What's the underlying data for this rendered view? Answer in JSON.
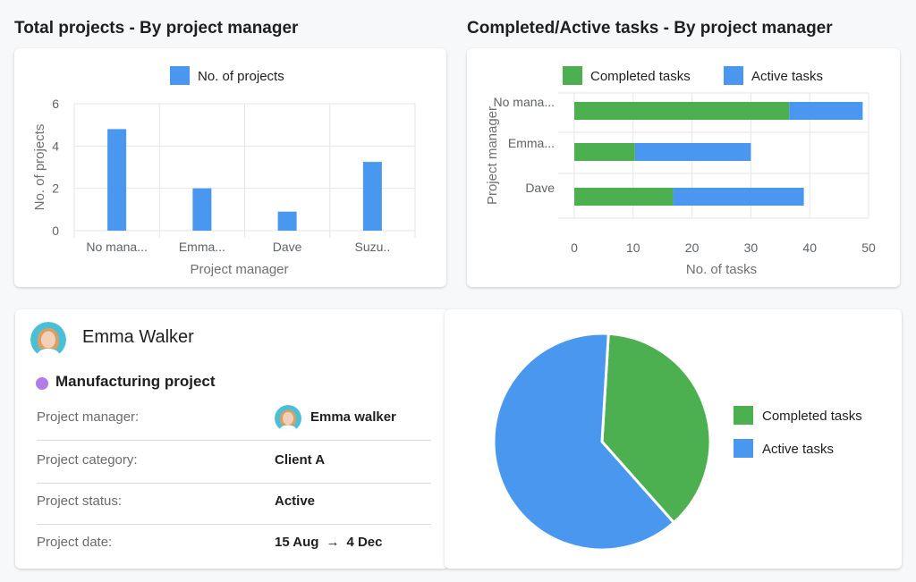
{
  "colors": {
    "blue": "#4a97f0",
    "green": "#4caf50",
    "purple": "#b57ce8",
    "grid": "#e6e6e6"
  },
  "sections": {
    "left_title": "Total projects - By project manager",
    "right_title": "Completed/Active tasks - By project manager"
  },
  "chart_data": [
    {
      "type": "bar",
      "legend_position": "top",
      "categories": [
        "No mana...",
        "Emma...",
        "Dave",
        "Suzu.."
      ],
      "series": [
        {
          "name": "No. of projects",
          "color": "#4a97f0",
          "values": [
            4.8,
            2,
            0.9,
            3.25
          ]
        }
      ],
      "xlabel": "Project manager",
      "ylabel": "No. of projects",
      "ylim": [
        0,
        6
      ],
      "yticks": [
        0,
        2,
        4,
        6
      ],
      "grid": true
    },
    {
      "type": "bar",
      "orientation": "horizontal",
      "stacked": true,
      "legend_position": "top",
      "categories": [
        "No mana...",
        "Emma...",
        "Dave"
      ],
      "series": [
        {
          "name": "Completed tasks",
          "color": "#4caf50",
          "values": [
            36.5,
            10.3,
            16.8
          ]
        },
        {
          "name": "Active tasks",
          "color": "#4a97f0",
          "values": [
            12.5,
            19.7,
            22.2
          ]
        }
      ],
      "xlabel": "No. of tasks",
      "ylabel": "Project manager",
      "xlim": [
        0,
        50
      ],
      "xticks": [
        0,
        10,
        20,
        30,
        40,
        50
      ],
      "grid": true
    },
    {
      "type": "pie",
      "legend_position": "right",
      "series": [
        {
          "name": "Completed tasks",
          "color": "#4caf50",
          "value": 37.5
        },
        {
          "name": "Active tasks",
          "color": "#4a97f0",
          "value": 62.5
        }
      ]
    }
  ],
  "details": {
    "name": "Emma Walker",
    "project": "Manufacturing project",
    "rows": [
      {
        "label": "Project manager:",
        "value": "Emma walker"
      },
      {
        "label": "Project category:",
        "value": "Client A"
      },
      {
        "label": "Project status:",
        "value": "Active"
      },
      {
        "label": "Project date:",
        "start": "15 Aug",
        "arrow": "→",
        "end": "4 Dec"
      }
    ]
  }
}
